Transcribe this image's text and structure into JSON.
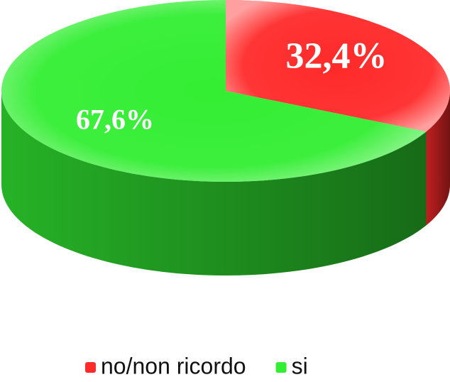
{
  "chart_data": {
    "type": "pie",
    "categories": [
      "no/non ricordo",
      "si"
    ],
    "values": [
      32.4,
      67.6
    ],
    "value_labels": [
      "32,4%",
      "67,6%"
    ],
    "colors": [
      "#ff2a2a",
      "#33ee33"
    ],
    "legend": "bottom"
  }
}
